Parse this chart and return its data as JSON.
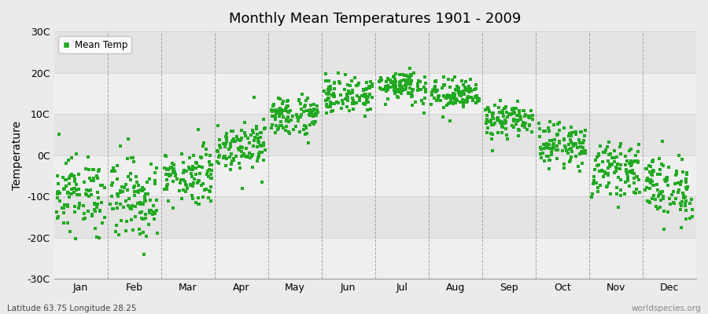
{
  "title": "Monthly Mean Temperatures 1901 - 2009",
  "ylabel": "Temperature",
  "xlabel_bottom_left": "Latitude 63.75 Longitude 28.25",
  "xlabel_bottom_right": "worldspecies.org",
  "legend_label": "Mean Temp",
  "dot_color": "#22AA22",
  "background_color": "#EBEBEB",
  "plot_bg_color": "#F0F0F0",
  "band_color_light": "#E8E8E8",
  "band_color_dark": "#DCDCDC",
  "grid_color": "#888888",
  "ylim": [
    -30,
    30
  ],
  "yticks": [
    -30,
    -20,
    -10,
    0,
    10,
    20,
    30
  ],
  "ytick_labels": [
    "-30C",
    "-20C",
    "-10C",
    "0C",
    "10C",
    "20C",
    "30C"
  ],
  "months": [
    "Jan",
    "Feb",
    "Mar",
    "Apr",
    "May",
    "Jun",
    "Jul",
    "Aug",
    "Sep",
    "Oct",
    "Nov",
    "Dec"
  ],
  "monthly_means": [
    -9.5,
    -10.5,
    -5.0,
    2.5,
    9.5,
    14.5,
    17.0,
    14.5,
    8.5,
    2.5,
    -3.5,
    -8.0
  ],
  "monthly_stds": [
    4.5,
    5.0,
    3.5,
    3.0,
    2.5,
    2.2,
    2.0,
    2.0,
    2.0,
    2.5,
    3.0,
    4.0
  ],
  "n_years": 109
}
